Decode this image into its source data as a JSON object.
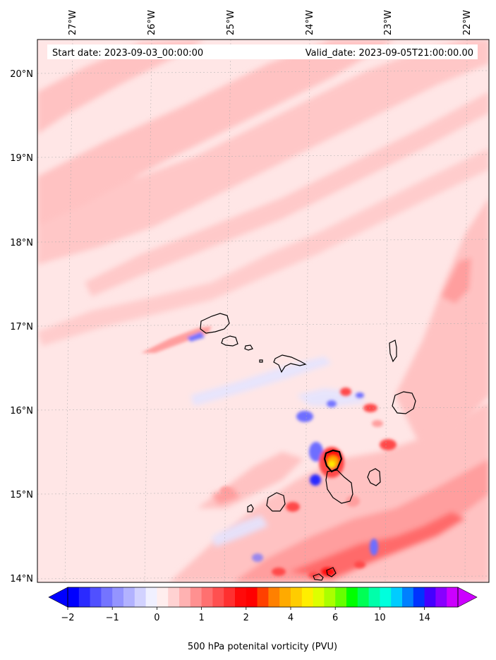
{
  "header": {
    "start_date": "Start date: 2023-09-03_00:00:00",
    "valid_date": "Valid_date: 2023-09-05T21:00:00.00"
  },
  "map": {
    "lon_ticks": [
      "27°W",
      "26°W",
      "25°W",
      "24°W",
      "23°W",
      "22°W"
    ],
    "lat_ticks": [
      "20°N",
      "19°N",
      "18°N",
      "17°N",
      "16°N",
      "15°N",
      "14°N"
    ],
    "gridlines": true,
    "islands": [
      "Santo Antão",
      "São Vicente",
      "Santa Luzia",
      "São Nicolau",
      "Sal",
      "Boa Vista",
      "Fogo",
      "Santiago",
      "Maio",
      "Brava"
    ],
    "colors": {
      "light_pink": "#ffe6e6",
      "pink": "#ffc2c2",
      "mid_pink": "#ff9e9e",
      "red": "#ff4a4a",
      "pale_blue": "#e4e4ff",
      "blue": "#6e6eff",
      "yellow": "#ffee00"
    }
  },
  "colorbar": {
    "title": "500 hPa potenital vorticity (PVU)",
    "tick_labels": [
      "−2",
      "−1",
      "0",
      "1",
      "2",
      "4",
      "6",
      "10",
      "14"
    ],
    "levels": [
      -2,
      -1.75,
      -1.5,
      -1.25,
      -1,
      -0.75,
      -0.5,
      -0.25,
      0,
      0.25,
      0.5,
      0.75,
      1,
      1.25,
      1.5,
      1.75,
      2,
      2.5,
      3,
      3.5,
      4,
      4.5,
      5,
      5.5,
      6,
      7,
      8,
      9,
      10,
      11,
      12,
      13,
      14,
      15,
      16
    ],
    "colors": [
      "#0000ff",
      "#2a2aff",
      "#5050ff",
      "#7474ff",
      "#9494ff",
      "#b2b2ff",
      "#d2d2ff",
      "#f0f0ff",
      "#ffeeee",
      "#ffd2d2",
      "#ffb2b2",
      "#ff9090",
      "#ff7070",
      "#ff5050",
      "#ff3030",
      "#ff0a0a",
      "#ff0000",
      "#ff4000",
      "#ff8000",
      "#ffaa00",
      "#ffcc00",
      "#ffee00",
      "#ddff00",
      "#aaff00",
      "#66ff00",
      "#00ff00",
      "#00ff55",
      "#00ffaa",
      "#00ffdd",
      "#00ccff",
      "#0080ff",
      "#0033ff",
      "#4400ff",
      "#8800ff",
      "#cc00ff"
    ],
    "under_color": "#0000ff",
    "over_color": "#cc00ff"
  }
}
